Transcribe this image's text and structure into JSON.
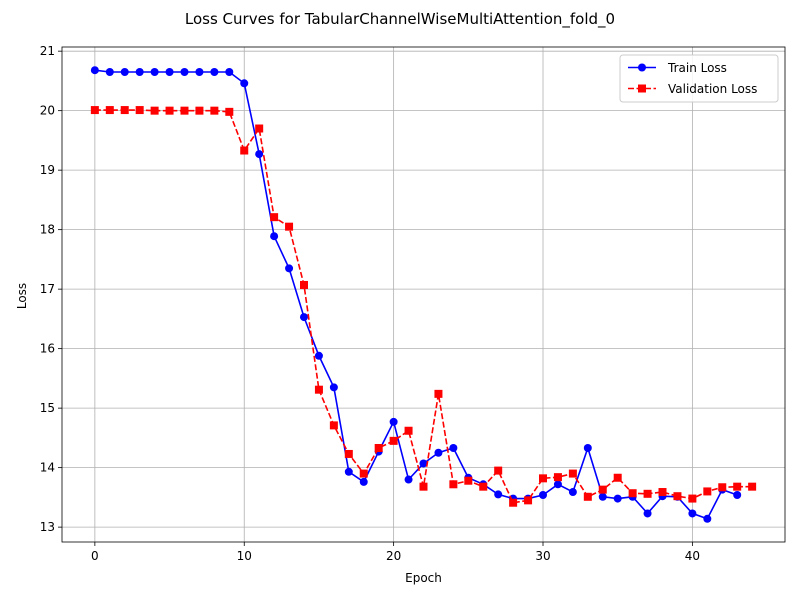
{
  "chart_data": {
    "type": "line",
    "title": "Loss Curves for TabularChannelWiseMultiAttention_fold_0",
    "xlabel": "Epoch",
    "ylabel": "Loss",
    "xlim": [
      -2.2,
      46.2
    ],
    "ylim": [
      12.75,
      21.07
    ],
    "xticks": [
      0,
      10,
      20,
      30,
      40
    ],
    "yticks": [
      13,
      14,
      15,
      16,
      17,
      18,
      19,
      20,
      21
    ],
    "grid": true,
    "legend_position": "top-right",
    "series": [
      {
        "name": "Train Loss",
        "color": "#0000ff",
        "marker": "circle",
        "linestyle": "solid",
        "x": [
          0,
          1,
          2,
          3,
          4,
          5,
          6,
          7,
          8,
          9,
          10,
          11,
          12,
          13,
          14,
          15,
          16,
          17,
          18,
          19,
          20,
          21,
          22,
          23,
          24,
          25,
          26,
          27,
          28,
          29,
          30,
          31,
          32,
          33,
          34,
          35,
          36,
          37,
          38,
          39,
          40,
          41,
          42,
          43
        ],
        "values": [
          20.68,
          20.65,
          20.65,
          20.65,
          20.65,
          20.65,
          20.65,
          20.65,
          20.65,
          20.65,
          20.46,
          19.27,
          17.89,
          17.35,
          16.53,
          15.88,
          15.35,
          13.93,
          13.76,
          14.27,
          14.77,
          13.8,
          14.07,
          14.25,
          14.33,
          13.83,
          13.72,
          13.55,
          13.48,
          13.48,
          13.54,
          13.72,
          13.59,
          14.33,
          13.51,
          13.48,
          13.51,
          13.23,
          13.52,
          13.51,
          13.23,
          13.14,
          13.63,
          13.54
        ]
      },
      {
        "name": "Validation Loss",
        "color": "#ff0000",
        "marker": "square",
        "linestyle": "dashed",
        "x": [
          0,
          1,
          2,
          3,
          4,
          5,
          6,
          7,
          8,
          9,
          10,
          11,
          12,
          13,
          14,
          15,
          16,
          17,
          18,
          19,
          20,
          21,
          22,
          23,
          24,
          25,
          26,
          27,
          28,
          29,
          30,
          31,
          32,
          33,
          34,
          35,
          36,
          37,
          38,
          39,
          40,
          41,
          42,
          43,
          44
        ],
        "values": [
          20.01,
          20.01,
          20.01,
          20.01,
          20.0,
          20.0,
          20.0,
          20.0,
          20.0,
          19.98,
          19.33,
          19.7,
          18.21,
          18.05,
          17.07,
          15.31,
          14.71,
          14.23,
          13.9,
          14.33,
          14.45,
          14.62,
          13.68,
          15.24,
          13.72,
          13.78,
          13.68,
          13.95,
          13.41,
          13.45,
          13.82,
          13.84,
          13.9,
          13.51,
          13.63,
          13.83,
          13.57,
          13.56,
          13.59,
          13.52,
          13.48,
          13.6,
          13.67,
          13.68,
          13.68
        ]
      }
    ]
  }
}
